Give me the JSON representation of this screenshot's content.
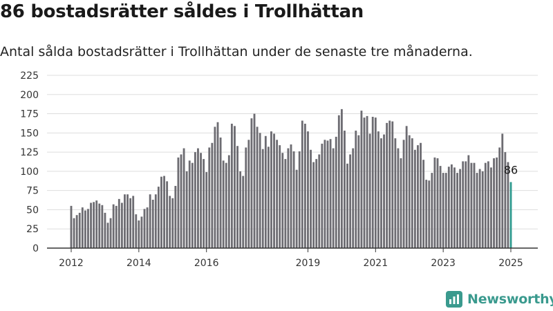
{
  "header": {
    "title": "86 bostadsrätter såldes i Trollhättan",
    "subtitle": "Antal sålda bostadsrätter i Trollhättan under de senaste tre månaderna."
  },
  "brand": {
    "name": "Newsworthy",
    "icon": "newsworthy-logo-icon",
    "color": "#3a9a8e"
  },
  "colors": {
    "bar": "#6d6c72",
    "highlight": "#2f9a8e",
    "grid": "#dddddd",
    "axis": "#333333"
  },
  "chart_data": {
    "type": "bar",
    "title": "86 bostadsrätter såldes i Trollhättan",
    "xlabel": "",
    "ylabel": "",
    "ylim": [
      0,
      225
    ],
    "yticks": [
      0,
      25,
      50,
      75,
      100,
      125,
      150,
      175,
      200,
      225
    ],
    "xticks": [
      {
        "label": "2012",
        "index": 0
      },
      {
        "label": "2014",
        "index": 24
      },
      {
        "label": "2016",
        "index": 48
      },
      {
        "label": "2019",
        "index": 84
      },
      {
        "label": "2021",
        "index": 108
      },
      {
        "label": "2023",
        "index": 132
      },
      {
        "label": "2025",
        "index": 156
      }
    ],
    "grid": true,
    "highlight": {
      "index": 156,
      "label": "86"
    },
    "values": [
      55,
      39,
      43,
      46,
      53,
      49,
      51,
      59,
      60,
      62,
      58,
      56,
      46,
      33,
      39,
      57,
      55,
      64,
      59,
      70,
      70,
      65,
      68,
      44,
      36,
      41,
      51,
      53,
      70,
      63,
      70,
      80,
      93,
      94,
      87,
      68,
      65,
      81,
      118,
      122,
      130,
      100,
      114,
      111,
      125,
      130,
      124,
      116,
      99,
      131,
      137,
      158,
      164,
      144,
      114,
      111,
      121,
      162,
      159,
      133,
      100,
      94,
      131,
      141,
      169,
      175,
      158,
      150,
      129,
      146,
      132,
      152,
      149,
      141,
      134,
      124,
      116,
      130,
      135,
      126,
      102,
      126,
      166,
      162,
      152,
      128,
      112,
      116,
      122,
      136,
      141,
      140,
      142,
      130,
      145,
      173,
      181,
      153,
      110,
      122,
      130,
      153,
      147,
      179,
      170,
      172,
      149,
      171,
      170,
      152,
      143,
      148,
      163,
      166,
      165,
      143,
      130,
      117,
      141,
      159,
      147,
      143,
      128,
      134,
      137,
      115,
      89,
      88,
      98,
      118,
      117,
      107,
      98,
      98,
      106,
      109,
      105,
      98,
      103,
      113,
      113,
      121,
      111,
      111,
      98,
      103,
      100,
      111,
      113,
      105,
      117,
      118,
      131,
      149,
      125,
      112,
      86
    ]
  }
}
